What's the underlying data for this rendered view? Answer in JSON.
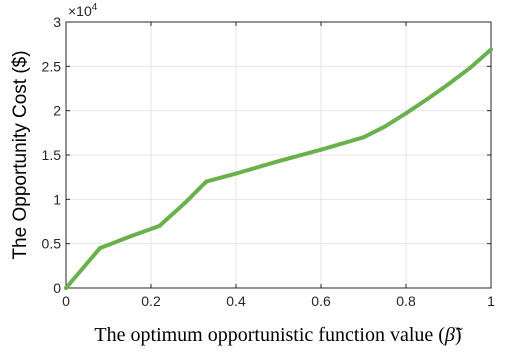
{
  "chart_data": {
    "type": "line",
    "title": "",
    "xlabel": "The optimum opportunistic function value",
    "xlabel_symbol": "β̃",
    "ylabel": "The Opportunity Cost ($)",
    "xlim": [
      0,
      1
    ],
    "ylim": [
      0,
      30000
    ],
    "x_ticks": [
      0,
      0.2,
      0.4,
      0.6,
      0.8,
      1
    ],
    "x_tick_labels": [
      "0",
      "0.2",
      "0.4",
      "0.6",
      "0.8",
      "1"
    ],
    "y_ticks": [
      0,
      5000,
      10000,
      15000,
      20000,
      25000,
      30000
    ],
    "y_tick_labels": [
      "0",
      "0.5",
      "1",
      "1.5",
      "2",
      "2.5",
      "3"
    ],
    "y_exponent_base": "×10",
    "y_exponent_power": "4",
    "grid": true,
    "line_color": "#6ab04c",
    "series": [
      {
        "x": [
          0,
          0.08,
          0.15,
          0.22,
          0.28,
          0.33,
          0.4,
          0.5,
          0.6,
          0.7,
          0.75,
          0.8,
          0.85,
          0.9,
          0.95,
          1.0
        ],
        "y": [
          0,
          4500,
          5800,
          7000,
          9600,
          12000,
          12900,
          14300,
          15600,
          17000,
          18200,
          19700,
          21300,
          23000,
          24800,
          26900
        ]
      }
    ]
  }
}
